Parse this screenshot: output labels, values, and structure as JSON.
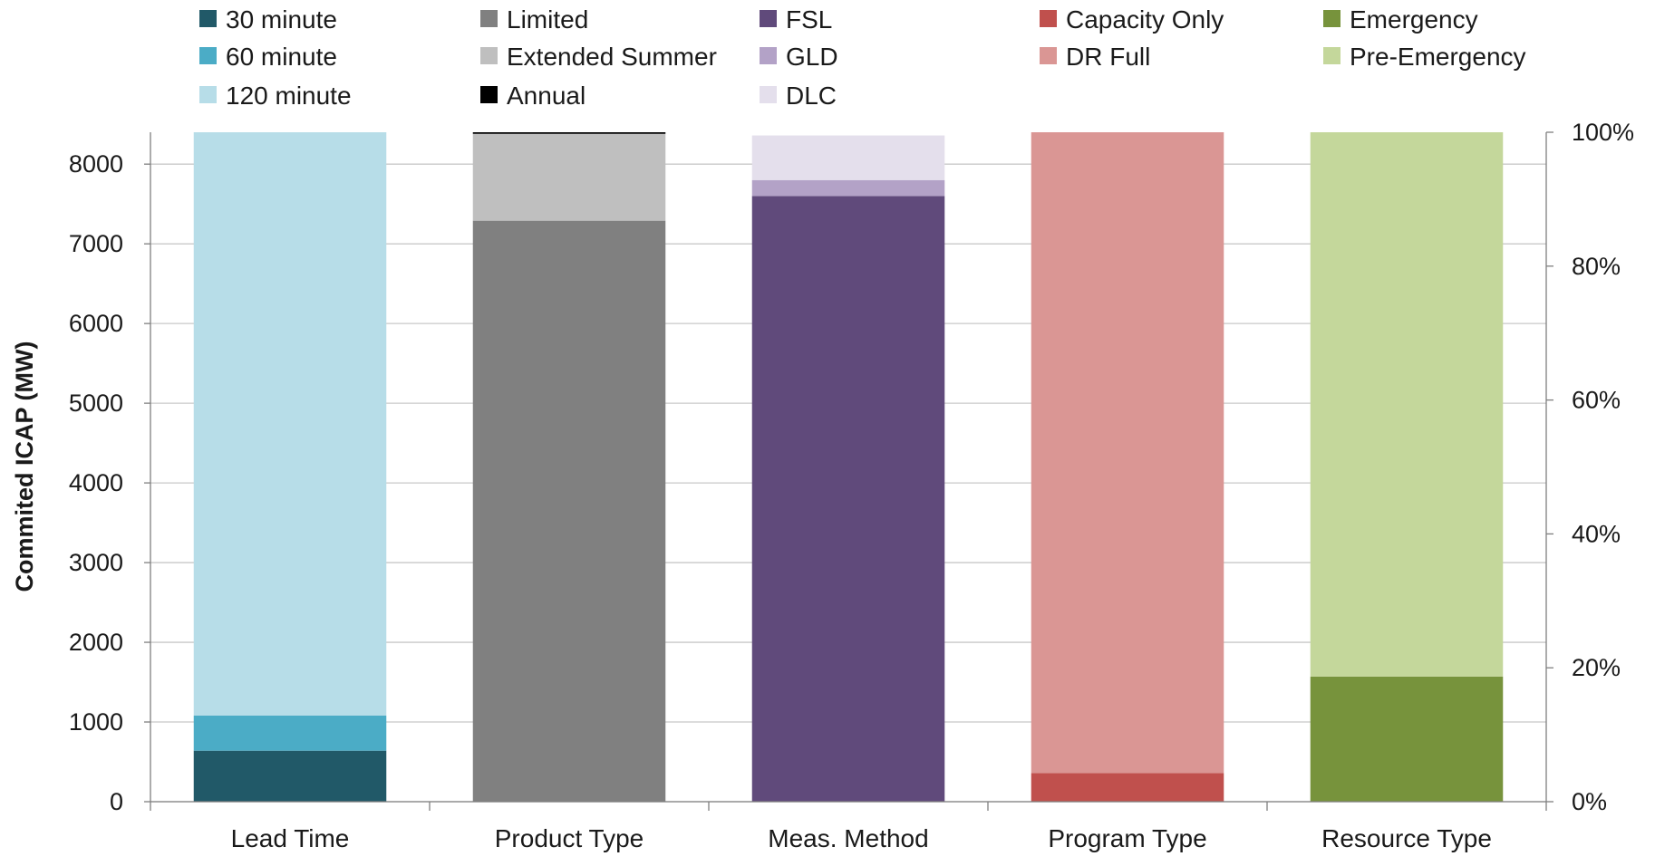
{
  "chart_data": {
    "type": "bar",
    "stacked": true,
    "ylabel": "Commited ICAP (MW)",
    "ylim": [
      0,
      8400
    ],
    "yticks": [
      0,
      1000,
      2000,
      3000,
      4000,
      5000,
      6000,
      7000,
      8000
    ],
    "y2lim": [
      0,
      100
    ],
    "y2ticks": [
      "0%",
      "20%",
      "40%",
      "60%",
      "80%",
      "100%"
    ],
    "grid": true,
    "legend_position": "top",
    "categories": [
      "Lead Time",
      "Product Type",
      "Meas. Method",
      "Program Type",
      "Resource Type"
    ],
    "series": [
      {
        "name": "30 minute",
        "color": "#215968",
        "values": [
          640,
          0,
          0,
          0,
          0
        ]
      },
      {
        "name": "60 minute",
        "color": "#4bacc6",
        "values": [
          440,
          0,
          0,
          0,
          0
        ]
      },
      {
        "name": "120 minute",
        "color": "#b7dde8",
        "values": [
          7320,
          0,
          0,
          0,
          0
        ]
      },
      {
        "name": "Limited",
        "color": "#808080",
        "values": [
          0,
          7290,
          0,
          0,
          0
        ]
      },
      {
        "name": "Extended Summer",
        "color": "#bfbfbf",
        "values": [
          0,
          1090,
          0,
          0,
          0
        ]
      },
      {
        "name": "Annual",
        "color": "#000000",
        "values": [
          0,
          20,
          0,
          0,
          0
        ]
      },
      {
        "name": "FSL",
        "color": "#604a7b",
        "values": [
          0,
          0,
          7600,
          0,
          0
        ]
      },
      {
        "name": "GLD",
        "color": "#b3a2c7",
        "values": [
          0,
          0,
          200,
          0,
          0
        ]
      },
      {
        "name": "DLC",
        "color": "#e4dfec",
        "values": [
          0,
          0,
          560,
          0,
          0
        ]
      },
      {
        "name": "Capacity Only",
        "color": "#c0504d",
        "values": [
          0,
          0,
          0,
          360,
          0
        ]
      },
      {
        "name": "DR Full",
        "color": "#da9694",
        "values": [
          0,
          0,
          0,
          8040,
          0
        ]
      },
      {
        "name": "Emergency",
        "color": "#77933c",
        "values": [
          0,
          0,
          0,
          0,
          1570
        ]
      },
      {
        "name": "Pre-Emergency",
        "color": "#c4d79b",
        "values": [
          0,
          0,
          0,
          0,
          6830
        ]
      }
    ],
    "legend_order": [
      [
        "30 minute",
        "60 minute",
        "120 minute"
      ],
      [
        "Limited",
        "Extended Summer",
        "Annual"
      ],
      [
        "FSL",
        "GLD",
        "DLC"
      ],
      [
        "Capacity Only",
        "DR Full"
      ],
      [
        "Emergency",
        "Pre-Emergency"
      ]
    ]
  }
}
